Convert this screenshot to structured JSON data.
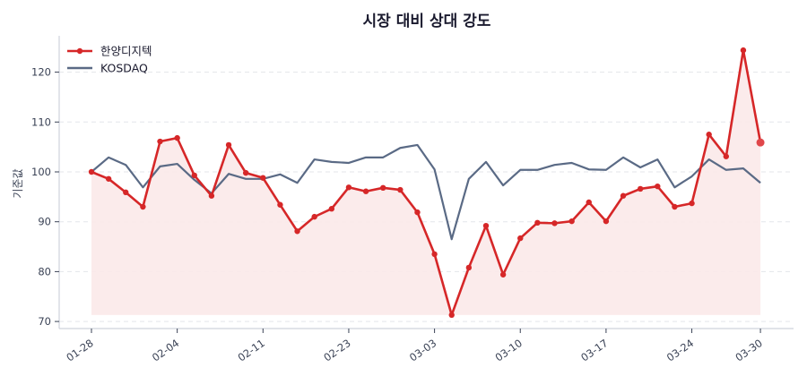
{
  "chart_data": {
    "type": "line",
    "title": "시장 대비 상대 강도",
    "xlabel": "",
    "ylabel": "기준값",
    "ylim": [
      69,
      127
    ],
    "yticks": [
      70,
      80,
      90,
      100,
      110,
      120
    ],
    "xtick_labels": [
      {
        "index": 0,
        "label": "01-28"
      },
      {
        "index": 5,
        "label": "02-04"
      },
      {
        "index": 10,
        "label": "02-11"
      },
      {
        "index": 15,
        "label": "02-23"
      },
      {
        "index": 20,
        "label": "03-03"
      },
      {
        "index": 25,
        "label": "03-10"
      },
      {
        "index": 30,
        "label": "03-17"
      },
      {
        "index": 35,
        "label": "03-24"
      },
      {
        "index": 39,
        "label": "03-30"
      }
    ],
    "grid": "horizontal dashed",
    "legend_position": "upper left",
    "fill_baseline": 71.3,
    "series": [
      {
        "name": "한양디지텍",
        "color": "#d62728",
        "fill_color": "#fbe9e9",
        "markers": true,
        "values": [
          100.0,
          98.6,
          95.9,
          93.0,
          106.1,
          106.8,
          99.3,
          95.2,
          105.4,
          99.8,
          98.8,
          93.4,
          88.1,
          91.0,
          92.6,
          96.9,
          96.1,
          96.8,
          96.4,
          91.9,
          83.5,
          71.3,
          80.8,
          89.2,
          79.4,
          86.7,
          89.8,
          89.7,
          90.1,
          93.9,
          90.1,
          95.2,
          96.6,
          97.1,
          93.0,
          93.7,
          107.5,
          103.1,
          124.4,
          105.9
        ]
      },
      {
        "name": "KOSDAQ",
        "color": "#5a6a85",
        "markers": false,
        "values": [
          100.0,
          102.9,
          101.4,
          96.9,
          101.1,
          101.6,
          98.4,
          95.7,
          99.6,
          98.6,
          98.6,
          99.5,
          97.8,
          102.5,
          102.0,
          101.8,
          102.9,
          102.9,
          104.8,
          105.4,
          100.5,
          86.5,
          98.6,
          102.0,
          97.3,
          100.4,
          100.4,
          101.4,
          101.8,
          100.5,
          100.4,
          102.9,
          100.9,
          102.5,
          96.9,
          99.1,
          102.5,
          100.4,
          100.7,
          97.8
        ]
      }
    ]
  }
}
